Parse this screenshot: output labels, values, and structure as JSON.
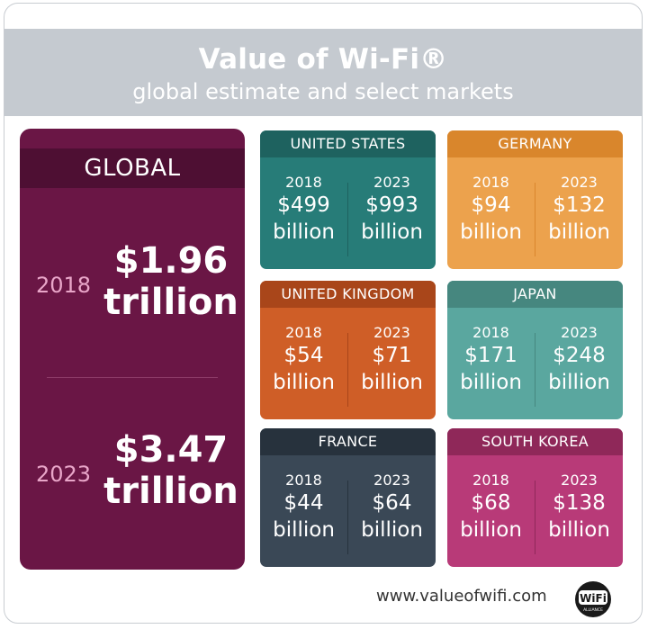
{
  "header": {
    "title": "Value of Wi-Fi®",
    "subtitle": "global estimate and select markets"
  },
  "global": {
    "label": "GLOBAL",
    "year1": "2018",
    "value1_line1": "$1.96",
    "value1_line2": "trillion",
    "year2": "2023",
    "value2_line1": "$3.47",
    "value2_line2": "trillion",
    "colors": {
      "bg": "#6a1645",
      "band": "#4e0f33",
      "year": "#e9a6c9"
    }
  },
  "markets": [
    {
      "name": "UNITED STATES",
      "year1": "2018",
      "val1": "$499",
      "unit1": "billion",
      "year2": "2023",
      "val2": "$993",
      "unit2": "billion",
      "bg": "#277c78",
      "band": "#1e625f"
    },
    {
      "name": "GERMANY",
      "year1": "2018",
      "val1": "$94",
      "unit1": "billion",
      "year2": "2023",
      "val2": "$132",
      "unit2": "billion",
      "bg": "#eca24d",
      "band": "#d9862c"
    },
    {
      "name": "UNITED KINGDOM",
      "year1": "2018",
      "val1": "$54",
      "unit1": "billion",
      "year2": "2023",
      "val2": "$71",
      "unit2": "billion",
      "bg": "#cf5e27",
      "band": "#a9461a"
    },
    {
      "name": "JAPAN",
      "year1": "2018",
      "val1": "$171",
      "unit1": "billion",
      "year2": "2023",
      "val2": "$248",
      "unit2": "billion",
      "bg": "#5aa79f",
      "band": "#46877f"
    },
    {
      "name": "FRANCE",
      "year1": "2018",
      "val1": "$44",
      "unit1": "billion",
      "year2": "2023",
      "val2": "$64",
      "unit2": "billion",
      "bg": "#3a4856",
      "band": "#27323d"
    },
    {
      "name": "SOUTH KOREA",
      "year1": "2018",
      "val1": "$68",
      "unit1": "billion",
      "year2": "2023",
      "val2": "$138",
      "unit2": "billion",
      "bg": "#b83a78",
      "band": "#8f2859"
    }
  ],
  "footer": {
    "url": "www.valueofwifi.com",
    "logo_text": "WiFi",
    "logo_sub": "ALLIANCE"
  }
}
